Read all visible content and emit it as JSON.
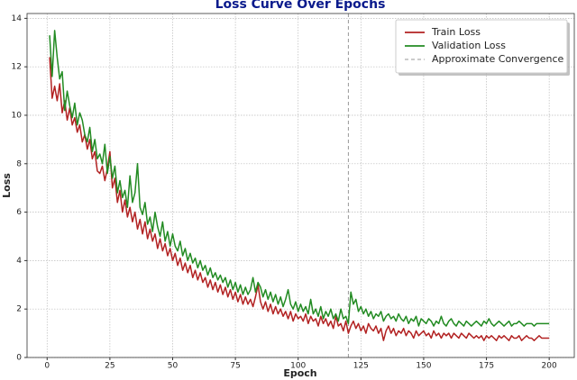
{
  "chart_data": {
    "type": "line",
    "title": "Loss Curve Over Epochs",
    "xlabel": "Epoch",
    "ylabel": "Loss",
    "x": [
      1,
      2,
      3,
      4,
      5,
      6,
      7,
      8,
      9,
      10,
      11,
      12,
      13,
      14,
      15,
      16,
      17,
      18,
      19,
      20,
      21,
      22,
      23,
      24,
      25,
      26,
      27,
      28,
      29,
      30,
      31,
      32,
      33,
      34,
      35,
      36,
      37,
      38,
      39,
      40,
      41,
      42,
      43,
      44,
      45,
      46,
      47,
      48,
      49,
      50,
      51,
      52,
      53,
      54,
      55,
      56,
      57,
      58,
      59,
      60,
      61,
      62,
      63,
      64,
      65,
      66,
      67,
      68,
      69,
      70,
      71,
      72,
      73,
      74,
      75,
      76,
      77,
      78,
      79,
      80,
      81,
      82,
      83,
      84,
      85,
      86,
      87,
      88,
      89,
      90,
      91,
      92,
      93,
      94,
      95,
      96,
      97,
      98,
      99,
      100,
      101,
      102,
      103,
      104,
      105,
      106,
      107,
      108,
      109,
      110,
      111,
      112,
      113,
      114,
      115,
      116,
      117,
      118,
      119,
      120,
      121,
      122,
      123,
      124,
      125,
      126,
      127,
      128,
      129,
      130,
      131,
      132,
      133,
      134,
      135,
      136,
      137,
      138,
      139,
      140,
      141,
      142,
      143,
      144,
      145,
      146,
      147,
      148,
      149,
      150,
      151,
      152,
      153,
      154,
      155,
      156,
      157,
      158,
      159,
      160,
      161,
      162,
      163,
      164,
      165,
      166,
      167,
      168,
      169,
      170,
      171,
      172,
      173,
      174,
      175,
      176,
      177,
      178,
      179,
      180,
      181,
      182,
      183,
      184,
      185,
      186,
      187,
      188,
      189,
      190,
      191,
      192,
      193,
      194,
      195,
      196,
      197,
      198,
      199,
      200
    ],
    "series": [
      {
        "name": "Train Loss",
        "color": "#b22222",
        "values": [
          12.4,
          10.7,
          11.2,
          10.6,
          11.3,
          10.1,
          10.6,
          9.8,
          10.3,
          9.6,
          9.9,
          9.3,
          9.6,
          8.9,
          9.2,
          8.6,
          9.0,
          8.2,
          8.5,
          7.7,
          7.6,
          7.9,
          7.3,
          7.8,
          8.5,
          7.0,
          7.4,
          6.4,
          6.9,
          6.0,
          6.5,
          5.8,
          6.2,
          5.6,
          6.0,
          5.3,
          5.7,
          5.1,
          5.6,
          4.9,
          5.3,
          4.8,
          5.1,
          4.5,
          4.9,
          4.4,
          4.7,
          4.2,
          4.5,
          4.0,
          4.3,
          3.8,
          4.1,
          3.6,
          3.9,
          3.5,
          3.8,
          3.3,
          3.6,
          3.2,
          3.5,
          3.1,
          3.3,
          2.9,
          3.2,
          2.8,
          3.1,
          2.7,
          3.0,
          2.6,
          2.9,
          2.5,
          2.8,
          2.4,
          2.7,
          2.3,
          2.6,
          2.2,
          2.5,
          2.2,
          2.4,
          2.1,
          2.5,
          3.0,
          2.3,
          2.0,
          2.3,
          1.9,
          2.2,
          1.8,
          2.1,
          1.8,
          2.0,
          1.7,
          1.9,
          1.6,
          1.9,
          1.5,
          1.8,
          1.6,
          1.7,
          1.5,
          1.8,
          1.4,
          1.7,
          1.5,
          1.6,
          1.3,
          1.7,
          1.4,
          1.6,
          1.3,
          1.5,
          1.2,
          1.7,
          1.3,
          1.4,
          1.1,
          1.5,
          1.0,
          1.3,
          1.5,
          1.2,
          1.4,
          1.1,
          1.3,
          1.0,
          1.4,
          1.2,
          1.1,
          1.3,
          1.0,
          1.2,
          0.7,
          1.1,
          1.3,
          1.0,
          1.2,
          0.9,
          1.1,
          1.0,
          1.2,
          0.9,
          1.1,
          1.0,
          0.8,
          1.1,
          0.9,
          1.0,
          1.1,
          0.9,
          1.0,
          0.8,
          1.1,
          0.9,
          1.0,
          0.8,
          1.0,
          0.9,
          1.0,
          0.8,
          1.0,
          0.9,
          0.8,
          1.0,
          0.9,
          0.8,
          1.0,
          0.9,
          0.8,
          0.9,
          0.8,
          0.9,
          0.7,
          0.9,
          0.8,
          0.9,
          0.8,
          0.7,
          0.9,
          0.8,
          0.9,
          0.8,
          0.7,
          0.9,
          0.8,
          0.8,
          0.9,
          0.7,
          0.8,
          0.9,
          0.8,
          0.8,
          0.7,
          0.8,
          0.9,
          0.8,
          0.8,
          0.8,
          0.8
        ]
      },
      {
        "name": "Validation Loss",
        "color": "#228b22",
        "values": [
          13.3,
          11.6,
          13.5,
          12.4,
          11.5,
          11.8,
          10.2,
          11.0,
          10.4,
          9.9,
          10.5,
          9.6,
          10.1,
          9.8,
          9.2,
          8.9,
          9.5,
          8.5,
          9.0,
          8.2,
          8.4,
          8.0,
          8.8,
          7.6,
          8.3,
          7.4,
          7.9,
          6.8,
          7.3,
          6.6,
          6.9,
          6.2,
          7.5,
          6.4,
          6.8,
          8.0,
          6.2,
          5.9,
          6.4,
          5.5,
          5.8,
          5.2,
          6.0,
          5.4,
          5.0,
          5.6,
          4.8,
          5.2,
          4.6,
          5.1,
          4.6,
          4.4,
          4.8,
          4.2,
          4.5,
          4.0,
          4.3,
          3.9,
          4.1,
          3.7,
          4.0,
          3.6,
          3.8,
          3.4,
          3.7,
          3.3,
          3.5,
          3.2,
          3.4,
          3.1,
          3.3,
          2.9,
          3.2,
          2.8,
          3.1,
          2.7,
          3.0,
          2.6,
          2.9,
          2.6,
          2.8,
          3.3,
          2.7,
          3.1,
          2.9,
          2.5,
          2.8,
          2.4,
          2.7,
          2.3,
          2.6,
          2.2,
          2.5,
          2.1,
          2.4,
          2.8,
          2.2,
          2.0,
          2.3,
          1.9,
          2.2,
          1.9,
          2.1,
          1.8,
          2.4,
          1.8,
          2.0,
          1.7,
          2.1,
          1.6,
          1.9,
          1.7,
          2.0,
          1.6,
          1.8,
          1.5,
          2.0,
          1.6,
          1.7,
          1.4,
          2.7,
          2.2,
          2.4,
          1.9,
          2.1,
          1.8,
          2.0,
          1.7,
          1.9,
          1.6,
          1.8,
          1.7,
          1.9,
          1.5,
          1.7,
          1.8,
          1.6,
          1.7,
          1.5,
          1.8,
          1.6,
          1.5,
          1.7,
          1.4,
          1.6,
          1.5,
          1.7,
          1.3,
          1.6,
          1.5,
          1.4,
          1.6,
          1.5,
          1.3,
          1.5,
          1.4,
          1.7,
          1.4,
          1.3,
          1.5,
          1.6,
          1.4,
          1.3,
          1.5,
          1.4,
          1.3,
          1.5,
          1.4,
          1.3,
          1.4,
          1.5,
          1.4,
          1.3,
          1.5,
          1.4,
          1.6,
          1.4,
          1.3,
          1.4,
          1.5,
          1.4,
          1.3,
          1.4,
          1.5,
          1.3,
          1.4,
          1.4,
          1.5,
          1.4,
          1.3,
          1.4,
          1.4,
          1.4,
          1.3,
          1.4,
          1.4,
          1.4,
          1.4,
          1.4,
          1.4
        ]
      }
    ],
    "vlines": [
      {
        "x": 120,
        "label": "Approximate Convergence",
        "color": "#999999"
      }
    ],
    "xlim": [
      -8,
      210
    ],
    "ylim": [
      0,
      14.2
    ],
    "xticks": [
      0,
      25,
      50,
      75,
      100,
      125,
      150,
      175,
      200
    ],
    "yticks": [
      0,
      2,
      4,
      6,
      8,
      10,
      12,
      14
    ],
    "grid": true,
    "legend": "upper right"
  }
}
